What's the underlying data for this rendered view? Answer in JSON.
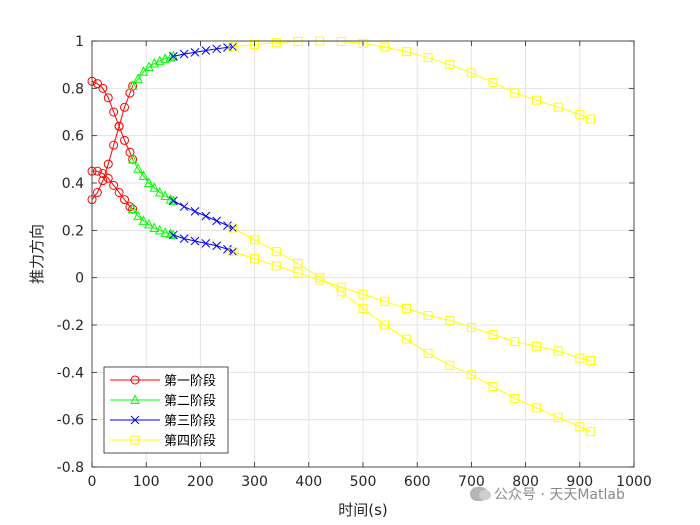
{
  "chart_data": {
    "type": "line",
    "xlabel": "时间(s)",
    "ylabel": "推力方向",
    "xlim": [
      0,
      1000
    ],
    "ylim": [
      -0.8,
      1
    ],
    "xticks": [
      0,
      100,
      200,
      300,
      400,
      500,
      600,
      700,
      800,
      900,
      1000
    ],
    "xtick_labels": [
      "0",
      "100",
      "200",
      "300",
      "400",
      "500",
      "600",
      "700",
      "800",
      "900",
      "1000"
    ],
    "yticks": [
      -0.8,
      -0.6,
      -0.4,
      -0.2,
      0,
      0.2,
      0.4,
      0.6,
      0.8,
      1
    ],
    "ytick_labels": [
      "-0.8",
      "-0.6",
      "-0.4",
      "-0.2",
      "0",
      "0.2",
      "0.4",
      "0.6",
      "0.8",
      "1"
    ],
    "grid": true,
    "legend_position": "bottom-left",
    "series": [
      {
        "name": "第一阶段",
        "color": "#ff0000",
        "marker": "circle",
        "components": [
          {
            "x": [
              0,
              10,
              20,
              30,
              40,
              50,
              60,
              70,
              75
            ],
            "y": [
              0.83,
              0.82,
              0.8,
              0.76,
              0.7,
              0.64,
              0.58,
              0.53,
              0.5
            ]
          },
          {
            "x": [
              0,
              10,
              20,
              30,
              40,
              50,
              60,
              70,
              75
            ],
            "y": [
              0.45,
              0.45,
              0.44,
              0.42,
              0.39,
              0.36,
              0.33,
              0.3,
              0.29
            ]
          },
          {
            "x": [
              0,
              10,
              20,
              30,
              40,
              50,
              60,
              70,
              75
            ],
            "y": [
              0.33,
              0.36,
              0.41,
              0.48,
              0.56,
              0.64,
              0.72,
              0.78,
              0.81
            ]
          }
        ]
      },
      {
        "name": "第二阶段",
        "color": "#00ff00",
        "marker": "triangle",
        "components": [
          {
            "x": [
              75,
              85,
              95,
              105,
              115,
              125,
              135,
              145,
              150
            ],
            "y": [
              0.81,
              0.84,
              0.87,
              0.89,
              0.905,
              0.915,
              0.925,
              0.93,
              0.935
            ]
          },
          {
            "x": [
              75,
              85,
              95,
              105,
              115,
              125,
              135,
              145,
              150
            ],
            "y": [
              0.5,
              0.46,
              0.43,
              0.4,
              0.38,
              0.36,
              0.345,
              0.33,
              0.325
            ]
          },
          {
            "x": [
              75,
              85,
              95,
              105,
              115,
              125,
              135,
              145,
              150
            ],
            "y": [
              0.29,
              0.26,
              0.24,
              0.225,
              0.21,
              0.2,
              0.19,
              0.185,
              0.18
            ]
          }
        ]
      },
      {
        "name": "第三阶段",
        "color": "#0000ff",
        "marker": "x",
        "components": [
          {
            "x": [
              150,
              170,
              190,
              210,
              230,
              250,
              260
            ],
            "y": [
              0.935,
              0.945,
              0.952,
              0.96,
              0.967,
              0.973,
              0.975
            ]
          },
          {
            "x": [
              150,
              170,
              190,
              210,
              230,
              250,
              260
            ],
            "y": [
              0.325,
              0.3,
              0.28,
              0.26,
              0.24,
              0.22,
              0.21
            ]
          },
          {
            "x": [
              150,
              170,
              190,
              210,
              230,
              250,
              260
            ],
            "y": [
              0.18,
              0.165,
              0.155,
              0.145,
              0.135,
              0.12,
              0.11
            ]
          }
        ]
      },
      {
        "name": "第四阶段",
        "color": "#ffff00",
        "marker": "square",
        "components": [
          {
            "x": [
              260,
              300,
              340,
              380,
              420,
              460,
              500,
              540,
              580,
              620,
              660,
              700,
              740,
              780,
              820,
              860,
              900,
              920
            ],
            "y": [
              0.975,
              0.985,
              0.993,
              0.998,
              1.0,
              0.998,
              0.99,
              0.975,
              0.955,
              0.93,
              0.9,
              0.865,
              0.825,
              0.78,
              0.75,
              0.72,
              0.69,
              0.67
            ]
          },
          {
            "x": [
              260,
              300,
              340,
              380,
              420,
              460,
              500,
              540,
              580,
              620,
              660,
              700,
              740,
              780,
              820,
              860,
              900,
              920
            ],
            "y": [
              0.21,
              0.16,
              0.11,
              0.06,
              0.0,
              -0.06,
              -0.13,
              -0.2,
              -0.26,
              -0.32,
              -0.37,
              -0.41,
              -0.46,
              -0.51,
              -0.55,
              -0.59,
              -0.63,
              -0.65
            ]
          },
          {
            "x": [
              260,
              300,
              340,
              380,
              420,
              460,
              500,
              540,
              580,
              620,
              660,
              700,
              740,
              780,
              820,
              860,
              900,
              920
            ],
            "y": [
              0.11,
              0.08,
              0.05,
              0.02,
              -0.01,
              -0.04,
              -0.07,
              -0.1,
              -0.13,
              -0.16,
              -0.18,
              -0.21,
              -0.24,
              -0.27,
              -0.29,
              -0.31,
              -0.34,
              -0.35
            ]
          }
        ]
      }
    ]
  },
  "watermark": {
    "icon": "wechat-icon",
    "text": "公众号 · 天天Matlab"
  }
}
